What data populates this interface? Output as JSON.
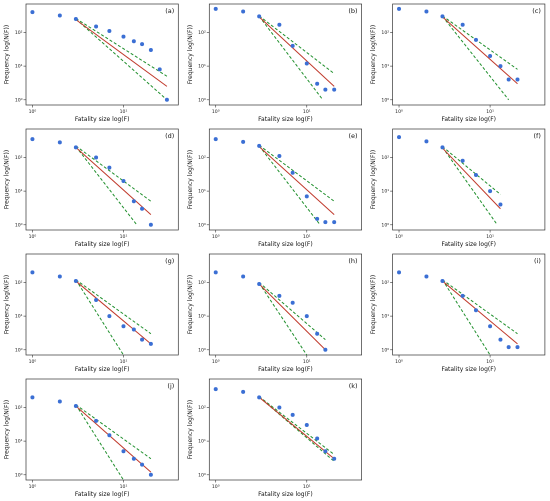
{
  "common": {
    "xlabel": "Fatality size log(F)",
    "ylabel": "Frequency log(N(F))",
    "x_tick_labels": [
      "10⁰",
      "10¹"
    ],
    "y_tick_labels": [
      "10⁰",
      "10¹",
      "10²"
    ],
    "colors": {
      "points": "#3b6fd4",
      "fit": "#c0392b",
      "ci": "#1f8f2c",
      "axis": "#333333"
    }
  },
  "chart_data": [
    {
      "type": "scatter",
      "label": "(a)",
      "xlabel": "Fatality size log(F)",
      "ylabel": "Frequency log(N(F))",
      "xscale": "log",
      "yscale": "log",
      "xlim": [
        0.85,
        40
      ],
      "ylim": [
        0.7,
        700
      ],
      "x": [
        1,
        2,
        3,
        5,
        7,
        10,
        13,
        16,
        20,
        25,
        30
      ],
      "y": [
        400,
        320,
        250,
        150,
        110,
        75,
        55,
        45,
        30,
        8,
        1
      ],
      "fit": {
        "x0": 3,
        "x1": 30,
        "y0": 240,
        "y1": 2.5
      },
      "ci_lower": {
        "x0": 3,
        "x1": 30,
        "y0": 250,
        "y1": 1
      },
      "ci_upper": {
        "x0": 3,
        "x1": 30,
        "y0": 260,
        "y1": 5
      }
    },
    {
      "type": "scatter",
      "label": "(b)",
      "xlabel": "Fatality size log(F)",
      "ylabel": "Frequency log(N(F))",
      "xscale": "log",
      "yscale": "log",
      "xlim": [
        0.85,
        40
      ],
      "ylim": [
        0.7,
        700
      ],
      "x": [
        1,
        2,
        3,
        5,
        7,
        10,
        13,
        16,
        20
      ],
      "y": [
        500,
        420,
        300,
        170,
        40,
        12,
        3,
        2,
        2
      ],
      "fit": {
        "x0": 3,
        "x1": 20,
        "y0": 290,
        "y1": 2.5
      },
      "ci_lower": {
        "x0": 3,
        "x1": 15,
        "y0": 300,
        "y1": 1
      },
      "ci_upper": {
        "x0": 3,
        "x1": 20,
        "y0": 310,
        "y1": 6
      }
    },
    {
      "type": "scatter",
      "label": "(c)",
      "xlabel": "Fatality size log(F)",
      "ylabel": "Frequency log(N(F))",
      "xscale": "log",
      "yscale": "log",
      "xlim": [
        0.85,
        40
      ],
      "ylim": [
        0.7,
        700
      ],
      "x": [
        1,
        2,
        3,
        5,
        7,
        10,
        13,
        16,
        20
      ],
      "y": [
        500,
        420,
        300,
        170,
        60,
        20,
        10,
        4,
        4
      ],
      "fit": {
        "x0": 3,
        "x1": 20,
        "y0": 290,
        "y1": 3
      },
      "ci_lower": {
        "x0": 3,
        "x1": 16,
        "y0": 300,
        "y1": 1
      },
      "ci_upper": {
        "x0": 3,
        "x1": 20,
        "y0": 310,
        "y1": 8
      }
    },
    {
      "type": "scatter",
      "label": "(d)",
      "xlabel": "Fatality size log(F)",
      "ylabel": "Frequency log(N(F))",
      "xscale": "log",
      "yscale": "log",
      "xlim": [
        0.85,
        40
      ],
      "ylim": [
        0.7,
        700
      ],
      "x": [
        1,
        2,
        3,
        5,
        7,
        10,
        13,
        16,
        20
      ],
      "y": [
        350,
        280,
        200,
        100,
        50,
        20,
        5,
        3,
        1
      ],
      "fit": {
        "x0": 3,
        "x1": 20,
        "y0": 200,
        "y1": 2
      },
      "ci_lower": {
        "x0": 3,
        "x1": 14,
        "y0": 210,
        "y1": 1
      },
      "ci_upper": {
        "x0": 3,
        "x1": 20,
        "y0": 220,
        "y1": 5
      }
    },
    {
      "type": "scatter",
      "label": "(e)",
      "xlabel": "Fatality size log(F)",
      "ylabel": "Frequency log(N(F))",
      "xscale": "log",
      "yscale": "log",
      "xlim": [
        0.85,
        40
      ],
      "ylim": [
        0.7,
        700
      ],
      "x": [
        1,
        2,
        3,
        5,
        7,
        10,
        13,
        16,
        20
      ],
      "y": [
        350,
        290,
        220,
        110,
        35,
        7,
        1.5,
        1.2,
        1.2
      ],
      "fit": {
        "x0": 3,
        "x1": 20,
        "y0": 210,
        "y1": 2
      },
      "ci_lower": {
        "x0": 3,
        "x1": 14,
        "y0": 220,
        "y1": 1
      },
      "ci_upper": {
        "x0": 3,
        "x1": 20,
        "y0": 230,
        "y1": 5
      }
    },
    {
      "type": "scatter",
      "label": "(f)",
      "xlabel": "Fatality size log(F)",
      "ylabel": "Frequency log(N(F))",
      "xscale": "log",
      "yscale": "log",
      "xlim": [
        0.85,
        40
      ],
      "ylim": [
        0.7,
        700
      ],
      "x": [
        1,
        2,
        3,
        5,
        7,
        10,
        13
      ],
      "y": [
        400,
        300,
        200,
        80,
        30,
        10,
        4
      ],
      "fit": {
        "x0": 3,
        "x1": 13,
        "y0": 190,
        "y1": 3
      },
      "ci_lower": {
        "x0": 3,
        "x1": 12,
        "y0": 200,
        "y1": 1
      },
      "ci_upper": {
        "x0": 3,
        "x1": 13,
        "y0": 210,
        "y1": 8
      }
    },
    {
      "type": "scatter",
      "label": "(g)",
      "xlabel": "Fatality size log(F)",
      "ylabel": "Frequency log(N(F))",
      "xscale": "log",
      "yscale": "log",
      "xlim": [
        0.85,
        40
      ],
      "ylim": [
        0.7,
        700
      ],
      "x": [
        1,
        2,
        3,
        5,
        7,
        10,
        13,
        16,
        20
      ],
      "y": [
        200,
        150,
        110,
        30,
        10,
        5,
        4,
        2,
        1.5
      ],
      "fit": {
        "x0": 3,
        "x1": 20,
        "y0": 110,
        "y1": 1.5
      },
      "ci_lower": {
        "x0": 3,
        "x1": 10,
        "y0": 120,
        "y1": 0.7
      },
      "ci_upper": {
        "x0": 3,
        "x1": 20,
        "y0": 120,
        "y1": 3
      }
    },
    {
      "type": "scatter",
      "label": "(h)",
      "xlabel": "Fatality size log(F)",
      "ylabel": "Frequency log(N(F))",
      "xscale": "log",
      "yscale": "log",
      "xlim": [
        0.85,
        40
      ],
      "ylim": [
        0.7,
        700
      ],
      "x": [
        1,
        2,
        3,
        5,
        7,
        10,
        13,
        16
      ],
      "y": [
        200,
        150,
        90,
        40,
        25,
        10,
        3,
        1
      ],
      "fit": {
        "x0": 3,
        "x1": 16,
        "y0": 90,
        "y1": 1
      },
      "ci_lower": {
        "x0": 3,
        "x1": 10,
        "y0": 95,
        "y1": 0.7
      },
      "ci_upper": {
        "x0": 3,
        "x1": 16,
        "y0": 100,
        "y1": 2
      }
    },
    {
      "type": "scatter",
      "label": "(i)",
      "xlabel": "Fatality size log(F)",
      "ylabel": "Frequency log(N(F))",
      "xscale": "log",
      "yscale": "log",
      "xlim": [
        0.85,
        40
      ],
      "ylim": [
        0.7,
        700
      ],
      "x": [
        1,
        2,
        3,
        5,
        7,
        10,
        13,
        16,
        20
      ],
      "y": [
        200,
        150,
        110,
        40,
        15,
        5,
        2,
        1.2,
        1.2
      ],
      "fit": {
        "x0": 3,
        "x1": 20,
        "y0": 110,
        "y1": 1.5
      },
      "ci_lower": {
        "x0": 3,
        "x1": 10,
        "y0": 120,
        "y1": 0.7
      },
      "ci_upper": {
        "x0": 3,
        "x1": 20,
        "y0": 120,
        "y1": 3
      }
    },
    {
      "type": "scatter",
      "label": "(j)",
      "xlabel": "Fatality size log(F)",
      "ylabel": "Frequency log(N(F))",
      "xscale": "log",
      "yscale": "log",
      "xlim": [
        0.85,
        40
      ],
      "ylim": [
        0.7,
        700
      ],
      "x": [
        1,
        2,
        3,
        5,
        7,
        10,
        13,
        16,
        20
      ],
      "y": [
        200,
        150,
        110,
        40,
        15,
        5,
        3,
        2,
        1
      ],
      "fit": {
        "x0": 3,
        "x1": 20,
        "y0": 110,
        "y1": 1.2
      },
      "ci_lower": {
        "x0": 3,
        "x1": 10,
        "y0": 120,
        "y1": 0.7
      },
      "ci_upper": {
        "x0": 3,
        "x1": 20,
        "y0": 120,
        "y1": 3
      }
    },
    {
      "type": "scatter",
      "label": "(k)",
      "xlabel": "Fatality size log(F)",
      "ylabel": "Frequency log(N(F))",
      "xscale": "log",
      "yscale": "log",
      "xlim": [
        0.85,
        40
      ],
      "ylim": [
        0.7,
        700
      ],
      "x": [
        1,
        2,
        3,
        5,
        7,
        10,
        13,
        16,
        20
      ],
      "y": [
        350,
        290,
        200,
        100,
        60,
        30,
        12,
        5,
        3
      ],
      "fit": {
        "x0": 3,
        "x1": 20,
        "y0": 200,
        "y1": 3
      },
      "ci_lower": {
        "x0": 3,
        "x1": 20,
        "y0": 205,
        "y1": 2.5
      },
      "ci_upper": {
        "x0": 3,
        "x1": 20,
        "y0": 210,
        "y1": 4
      }
    }
  ]
}
